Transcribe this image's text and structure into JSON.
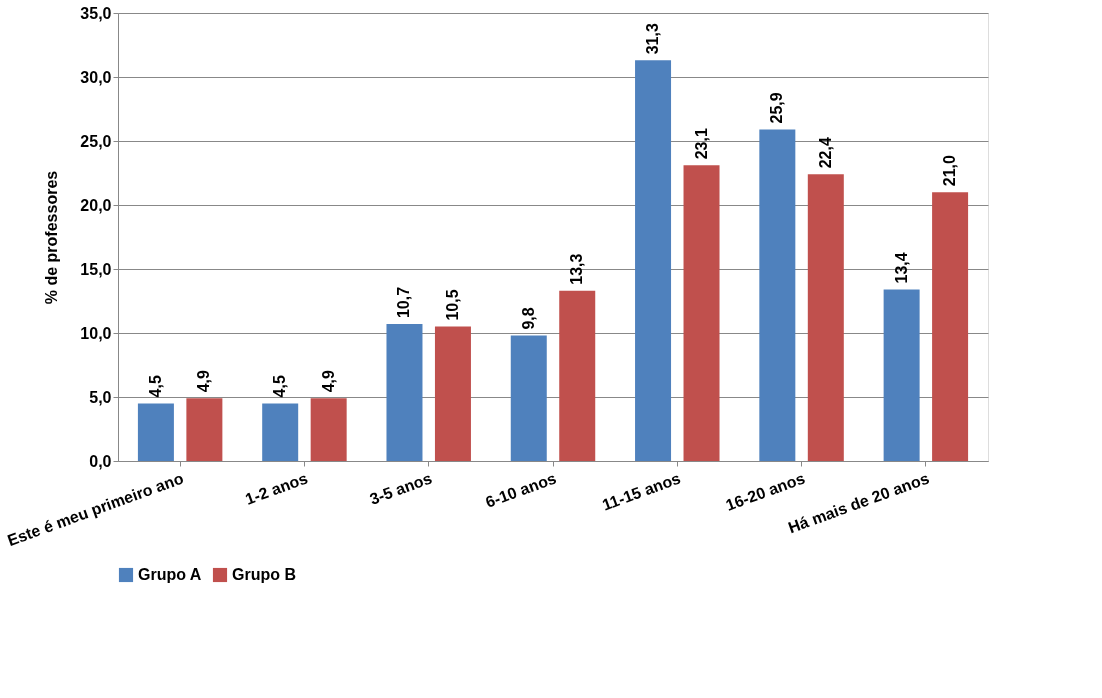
{
  "chart_data": {
    "type": "bar",
    "ylabel": "% de professores",
    "categories": [
      "Este é meu primeiro ano",
      "1-2 anos",
      "3-5 anos",
      "6-10 anos",
      "11-15 anos",
      "16-20 anos",
      "Há mais de 20 anos"
    ],
    "series": [
      {
        "name": "Grupo A",
        "color": "#4f81bd",
        "values": [
          4.5,
          4.5,
          10.7,
          9.8,
          31.3,
          25.9,
          13.4
        ],
        "value_labels": [
          "4,5",
          "4,5",
          "10,7",
          "9,8",
          "31,3",
          "25,9",
          "13,4"
        ]
      },
      {
        "name": "Grupo B",
        "color": "#c0504d",
        "values": [
          4.9,
          4.9,
          10.5,
          13.3,
          23.1,
          22.4,
          21.0
        ],
        "value_labels": [
          "4,9",
          "4,9",
          "10,5",
          "13,3",
          "23,1",
          "22,4",
          "21,0"
        ]
      }
    ],
    "ylim": [
      0,
      35
    ],
    "yticks": [
      {
        "value": 0,
        "label": "0,0"
      },
      {
        "value": 5,
        "label": "5,0"
      },
      {
        "value": 10,
        "label": "10,0"
      },
      {
        "value": 15,
        "label": "15,0"
      },
      {
        "value": 20,
        "label": "20,0"
      },
      {
        "value": 25,
        "label": "25,0"
      },
      {
        "value": 30,
        "label": "30,0"
      },
      {
        "value": 35,
        "label": "35,0"
      }
    ],
    "grid": "y",
    "legend": "bottom"
  }
}
